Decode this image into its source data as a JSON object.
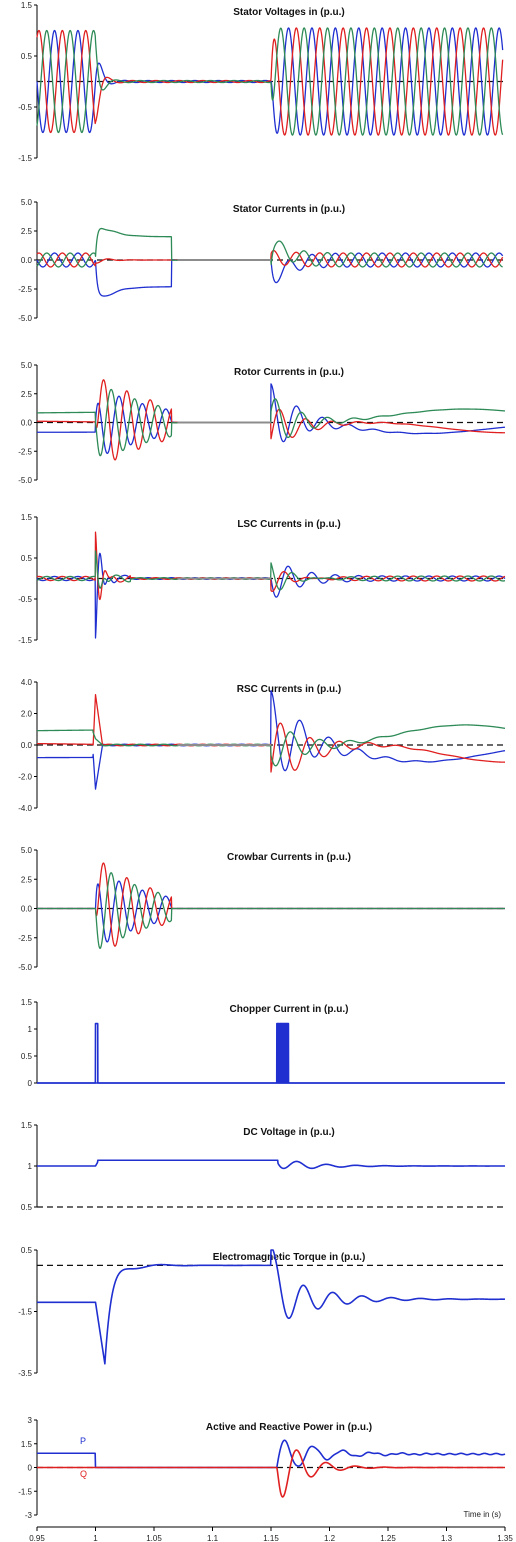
{
  "colors": {
    "blue": "#1f2fd0",
    "red": "#e02020",
    "green": "#2e8b57",
    "grey": "#8c8c8c",
    "ref": "#111111"
  },
  "time_axis": {
    "label": "Time in (s)",
    "range": [
      0.95,
      1.35
    ],
    "ticks": [
      "0.95",
      "1",
      "1.05",
      "1.1",
      "1.15",
      "1.2",
      "1.25",
      "1.3",
      "1.35"
    ]
  },
  "chart_data": [
    {
      "type": "line",
      "title": "Stator Voltages in (p.u.)",
      "ylim": [
        -1.5,
        1.5
      ],
      "yticks": [
        "1.5",
        "0.5",
        "-0.5",
        "-1.5"
      ],
      "events": {
        "fault_start": 1.0,
        "fault_clear": 1.15
      },
      "series": [
        {
          "phase": "a",
          "color": "blue",
          "amplitude_pre": 1.0,
          "amplitude_during": 0.02,
          "amplitude_post": 1.05,
          "freq_hz": 50
        },
        {
          "phase": "b",
          "color": "red",
          "amplitude_pre": 1.0,
          "amplitude_during": 0.02,
          "amplitude_post": 1.05,
          "freq_hz": 50
        },
        {
          "phase": "c",
          "color": "green",
          "amplitude_pre": 1.0,
          "amplitude_during": 0.02,
          "amplitude_post": 1.05,
          "freq_hz": 50
        }
      ]
    },
    {
      "type": "line",
      "title": "Stator Currents in (p.u.)",
      "ylim": [
        -5.0,
        5.0
      ],
      "yticks": [
        "5.0",
        "2.5",
        "0.0",
        "-2.5",
        "-5.0"
      ],
      "series": [
        {
          "color": "blue",
          "amplitude_pre": 0.6,
          "peak_fault": -4.7,
          "dc_during": -2.0,
          "amplitude_post": 0.6,
          "post_transient": -3.0
        },
        {
          "color": "red",
          "amplitude_pre": 0.6,
          "peak_fault": 3.0,
          "dc_during": 0.0,
          "amplitude_post": 0.6,
          "post_transient": 0.5
        },
        {
          "color": "green",
          "amplitude_pre": 0.6,
          "peak_fault": 3.8,
          "dc_during": 2.0,
          "amplitude_post": 0.6,
          "post_transient": 2.5
        }
      ]
    },
    {
      "type": "line",
      "title": "Rotor Currents in (p.u.)",
      "ylim": [
        -5.0,
        5.0
      ],
      "yticks": [
        "5.0",
        "2.5",
        "0.0",
        "-2.5",
        "-5.0"
      ],
      "series": [
        {
          "color": "blue",
          "pre_value": -0.6,
          "fault_amplitude": 3.5,
          "post_value": -0.6,
          "post_peak": 3.0
        },
        {
          "color": "red",
          "pre_value": 0.0,
          "fault_amplitude": 4.5,
          "post_value": -0.3,
          "post_peak": -2.0
        },
        {
          "color": "green",
          "pre_value": 0.6,
          "fault_amplitude": 3.8,
          "post_value": 0.8,
          "post_peak": -2.4
        }
      ]
    },
    {
      "type": "line",
      "title": "LSC Currents in (p.u.)",
      "ylim": [
        -1.5,
        1.5
      ],
      "yticks": [
        "1.5",
        "0.5",
        "-0.5",
        "-1.5"
      ],
      "series": [
        {
          "color": "blue",
          "fault_peak": -1.5,
          "post_peak": -0.5
        },
        {
          "color": "red",
          "fault_peak": 1.2,
          "post_peak": 0.4
        },
        {
          "color": "green",
          "fault_peak": 0.6,
          "post_peak": 0.5
        }
      ]
    },
    {
      "type": "line",
      "title": "RSC Currents in (p.u.)",
      "ylim": [
        -4.0,
        4.0
      ],
      "yticks": [
        "4.0",
        "2.0",
        "0.0",
        "-2.0",
        "-4.0"
      ],
      "series": [
        {
          "color": "blue",
          "pre_value": -0.6,
          "fault_peak": -2.8,
          "post_peak": 3.0,
          "final": -0.6
        },
        {
          "color": "red",
          "pre_value": 0.0,
          "fault_peak": 3.2,
          "post_peak": -2.4,
          "final": -0.6
        },
        {
          "color": "green",
          "pre_value": 0.8,
          "fault_peak": 0.5,
          "post_peak": 1.5,
          "final": 0.8
        }
      ]
    },
    {
      "type": "line",
      "title": "Crowbar Currents in (p.u.)",
      "ylim": [
        -5.0,
        5.0
      ],
      "yticks": [
        "5.0",
        "2.5",
        "0.0",
        "-2.5",
        "-5.0"
      ],
      "series": [
        {
          "color": "blue",
          "fault_amplitude": 3.5
        },
        {
          "color": "red",
          "fault_amplitude": 4.5
        },
        {
          "color": "green",
          "fault_amplitude": 4.0
        }
      ]
    },
    {
      "type": "line",
      "title": "Chopper Current in (p.u.)",
      "ylim": [
        0,
        1.5
      ],
      "yticks": [
        "1.5",
        "1",
        "0.5",
        "0"
      ],
      "series": [
        {
          "color": "blue",
          "pulses": [
            {
              "t_start": 1.0,
              "t_end": 1.002,
              "level": 1.1
            },
            {
              "t_start": 1.155,
              "t_end": 1.165,
              "level": 1.1
            }
          ]
        }
      ]
    },
    {
      "type": "line",
      "title": "DC Voltage in (p.u.)",
      "ylim": [
        0.5,
        1.5
      ],
      "yticks": [
        "1.5",
        "1",
        "0.5"
      ],
      "reference": 0.5,
      "series": [
        {
          "color": "blue",
          "pre": 1.0,
          "during": 1.07,
          "post_osc": 0.08,
          "final": 1.0
        }
      ]
    },
    {
      "type": "line",
      "title": "Electromagnetic Torque in (p.u.)",
      "ylim": [
        -3.5,
        0.5
      ],
      "yticks": [
        "0.5",
        "-1.5",
        "-3.5"
      ],
      "reference": 0.0,
      "series": [
        {
          "color": "blue",
          "pre": -1.2,
          "fault_min": -3.2,
          "during": 0.0,
          "post_min": -1.8,
          "final": -1.1
        }
      ]
    },
    {
      "type": "line",
      "title": "Active and Reactive Power in (p.u.)",
      "ylim": [
        -3,
        3
      ],
      "yticks": [
        "3",
        "1.5",
        "0",
        "-1.5",
        "-3"
      ],
      "series": [
        {
          "name": "P",
          "color": "blue",
          "pre": 0.9,
          "during": 0.0,
          "post_peak": 1.8,
          "final": 0.85
        },
        {
          "name": "Q",
          "color": "red",
          "pre": 0.0,
          "during": 0.0,
          "post_min": -2.6,
          "final": 0.0
        }
      ]
    }
  ]
}
